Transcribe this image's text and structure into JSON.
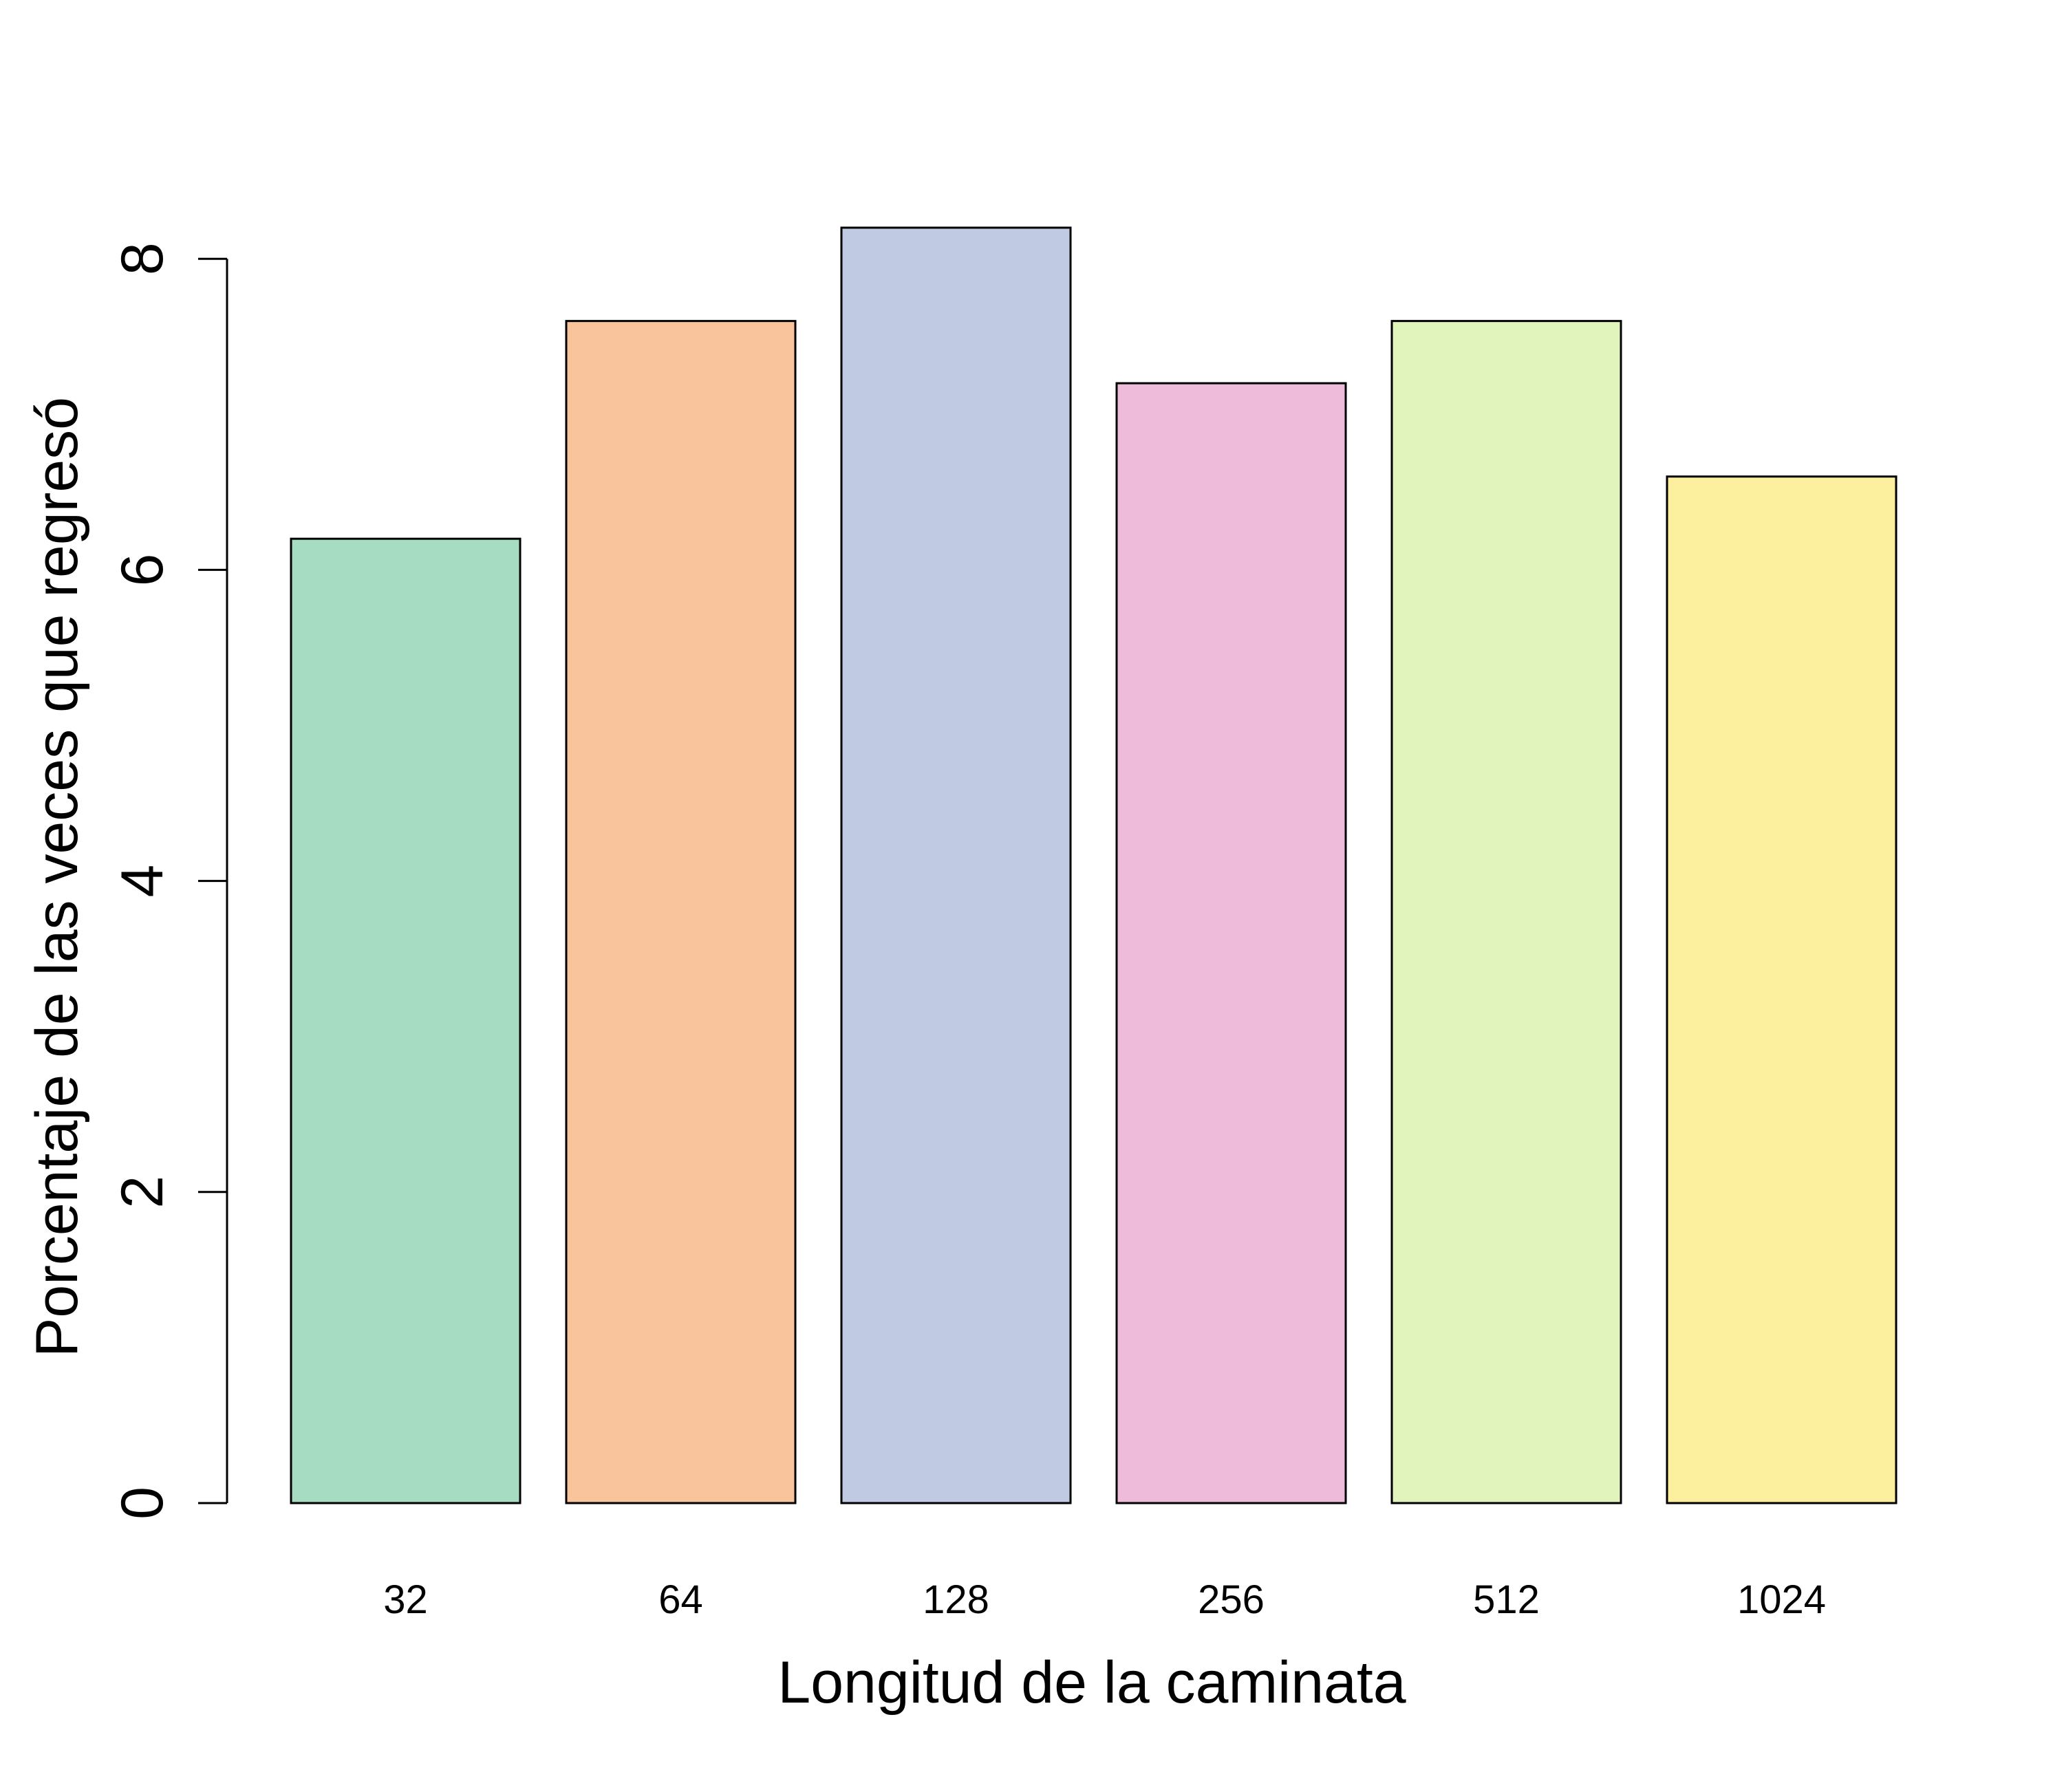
{
  "chart_data": {
    "type": "bar",
    "categories": [
      "32",
      "64",
      "128",
      "256",
      "512",
      "1024"
    ],
    "values": [
      6.2,
      7.6,
      8.2,
      7.2,
      7.6,
      6.6
    ],
    "colors": [
      "#a6dcc1",
      "#f9c49c",
      "#c0cae3",
      "#eebbdb",
      "#e0f4bc",
      "#fcef9e"
    ],
    "title": "",
    "xlabel": "Longitud de la caminata",
    "ylabel": "Porcentaje de las veces que regresó",
    "ylim": [
      0,
      8.6
    ],
    "yticks": [
      0,
      2,
      4,
      6,
      8
    ],
    "grid": false,
    "legend": "none"
  }
}
